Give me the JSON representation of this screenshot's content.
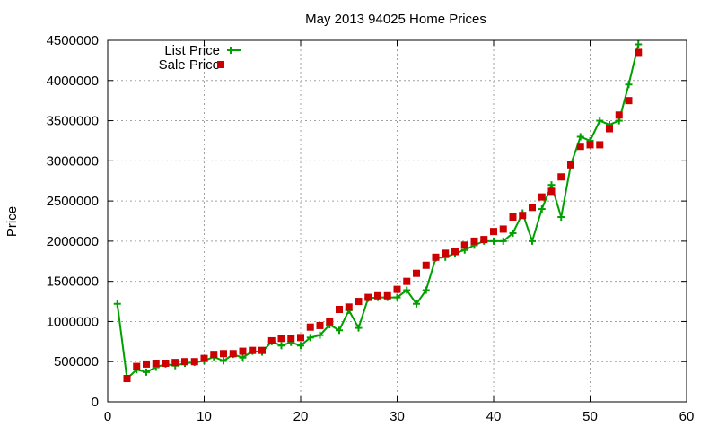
{
  "chart_data": {
    "type": "line",
    "title": "May 2013 94025 Home Prices",
    "xlabel": "",
    "ylabel": "Price",
    "xlim": [
      0,
      60
    ],
    "ylim": [
      0,
      4500000
    ],
    "xticks": [
      0,
      10,
      20,
      30,
      40,
      50,
      60
    ],
    "yticks": [
      0,
      500000,
      1000000,
      1500000,
      2000000,
      2500000,
      3000000,
      3500000,
      4000000,
      4500000
    ],
    "xtick_labels": [
      "0",
      "10",
      "20",
      "30",
      "40",
      "50",
      "60"
    ],
    "ytick_labels": [
      "0",
      "500000",
      "1000000",
      "1500000",
      "2000000",
      "2500000",
      "3000000",
      "3500000",
      "4000000",
      "4500000"
    ],
    "grid": true,
    "legend_position": "top-left",
    "series": [
      {
        "name": "List Price",
        "style": "line with plus markers",
        "color": "#00a000",
        "x": [
          1,
          2,
          3,
          4,
          5,
          6,
          7,
          8,
          9,
          10,
          11,
          12,
          13,
          14,
          15,
          16,
          17,
          18,
          19,
          20,
          21,
          22,
          23,
          24,
          25,
          26,
          27,
          28,
          29,
          30,
          31,
          32,
          33,
          34,
          35,
          36,
          37,
          38,
          39,
          40,
          41,
          42,
          43,
          44,
          45,
          46,
          47,
          48,
          49,
          50,
          51,
          52,
          53,
          54,
          55
        ],
        "values": [
          1220000,
          290000,
          400000,
          370000,
          430000,
          470000,
          450000,
          480000,
          490000,
          510000,
          560000,
          510000,
          590000,
          550000,
          630000,
          620000,
          750000,
          700000,
          740000,
          700000,
          800000,
          830000,
          960000,
          890000,
          1140000,
          920000,
          1290000,
          1300000,
          1300000,
          1300000,
          1390000,
          1220000,
          1390000,
          1790000,
          1800000,
          1850000,
          1890000,
          1950000,
          2000000,
          2000000,
          2000000,
          2100000,
          2350000,
          2000000,
          2400000,
          2700000,
          2300000,
          2950000,
          3300000,
          3250000,
          3500000,
          3450000,
          3500000,
          3950000,
          4450000
        ]
      },
      {
        "name": "Sale Price",
        "style": "square markers",
        "color": "#cc0000",
        "x": [
          2,
          3,
          4,
          5,
          6,
          7,
          8,
          9,
          10,
          11,
          12,
          13,
          14,
          15,
          16,
          17,
          18,
          19,
          20,
          21,
          22,
          23,
          24,
          25,
          26,
          27,
          28,
          29,
          30,
          31,
          32,
          33,
          34,
          35,
          36,
          37,
          38,
          39,
          40,
          41,
          42,
          43,
          44,
          45,
          46,
          47,
          48,
          49,
          50,
          51,
          52,
          53,
          54,
          55
        ],
        "values": [
          290000,
          440000,
          470000,
          480000,
          480000,
          490000,
          500000,
          500000,
          540000,
          590000,
          600000,
          600000,
          630000,
          640000,
          640000,
          760000,
          790000,
          790000,
          800000,
          930000,
          950000,
          1000000,
          1150000,
          1180000,
          1250000,
          1300000,
          1320000,
          1320000,
          1400000,
          1500000,
          1600000,
          1700000,
          1800000,
          1850000,
          1870000,
          1950000,
          2000000,
          2020000,
          2120000,
          2150000,
          2300000,
          2320000,
          2420000,
          2550000,
          2620000,
          2800000,
          2950000,
          3180000,
          3200000,
          3200000,
          3400000,
          3570000,
          3750000,
          4350000
        ]
      }
    ]
  }
}
